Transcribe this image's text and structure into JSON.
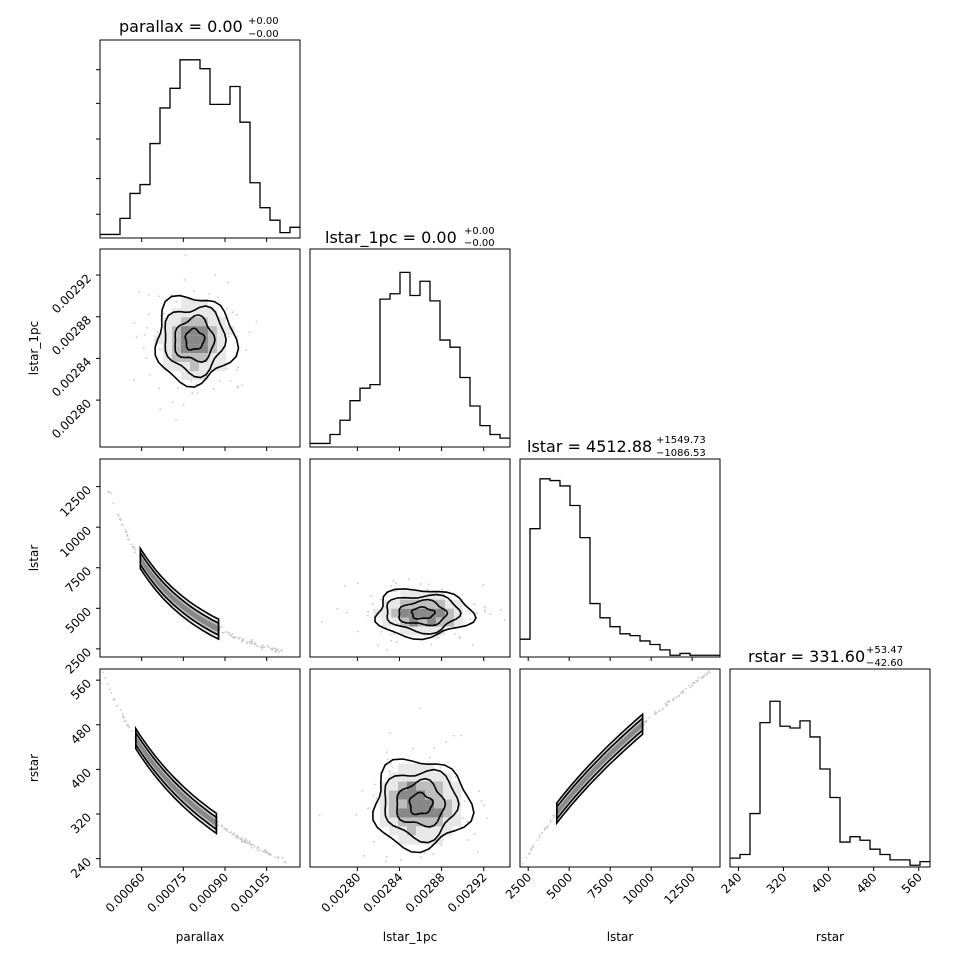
{
  "figure": {
    "params": [
      "parallax",
      "lstar_1pc",
      "lstar",
      "rstar"
    ],
    "titles": [
      {
        "text": "parallax = 0.00",
        "sup": "+0.00",
        "sub": "−0.00"
      },
      {
        "text": "lstar_1pc = 0.00",
        "sup": "+0.00",
        "sub": "−0.00"
      },
      {
        "text": "lstar = 4512.88",
        "sup": "+1549.73",
        "sub": "−1086.53"
      },
      {
        "text": "rstar = 331.60",
        "sup": "+53.47",
        "sub": "−42.60"
      }
    ],
    "axis_labels": {
      "parallax": "parallax",
      "lstar_1pc": "lstar_1pc",
      "lstar": "lstar",
      "rstar": "rstar"
    },
    "ticks": {
      "parallax": [
        "0.00060",
        "0.00075",
        "0.00090",
        "0.00105"
      ],
      "lstar_1pc": [
        "0.00280",
        "0.00284",
        "0.00288",
        "0.00292"
      ],
      "lstar": [
        "2500",
        "5000",
        "7500",
        "10000",
        "12500"
      ],
      "rstar": [
        "240",
        "320",
        "400",
        "480",
        "560"
      ]
    }
  },
  "chart_data": {
    "type": "corner",
    "params": [
      "parallax",
      "lstar_1pc",
      "lstar",
      "rstar"
    ],
    "ranges": {
      "parallax": [
        0.00045,
        0.00117
      ],
      "lstar_1pc": [
        0.002755,
        0.002945
      ],
      "lstar": [
        2000,
        14200
      ],
      "rstar": [
        225,
        580
      ]
    },
    "histograms": {
      "parallax": [
        2,
        2,
        11,
        25,
        30,
        53,
        73,
        84,
        100,
        100,
        95,
        75,
        75,
        85,
        65,
        31,
        17,
        10,
        3,
        6
      ],
      "lstar_1pc": [
        2,
        2,
        7,
        15,
        26,
        33,
        35,
        83,
        86,
        98,
        85,
        93,
        82,
        60,
        56,
        39,
        23,
        12,
        7,
        5
      ],
      "lstar": [
        10,
        72,
        100,
        99,
        96,
        85,
        67,
        30,
        22,
        17,
        13,
        12,
        9,
        7,
        4,
        1,
        2,
        1,
        1,
        1
      ],
      "rstar": [
        5,
        7,
        30,
        81,
        93,
        79,
        78,
        82,
        73,
        55,
        39,
        14,
        17,
        15,
        10,
        7,
        4,
        4,
        1,
        3
      ]
    },
    "quantiles": {
      "parallax": {
        "median": "0.00",
        "plus": "+0.00",
        "minus": "−0.00"
      },
      "lstar_1pc": {
        "median": "0.00",
        "plus": "+0.00",
        "minus": "−0.00"
      },
      "lstar": {
        "median": 4512.88,
        "plus": 1549.73,
        "minus": 1086.53
      },
      "rstar": {
        "median": 331.6,
        "plus": 53.47,
        "minus": 42.6
      }
    },
    "scatter": [
      {
        "x": "parallax",
        "y": "lstar_1pc",
        "kind": "blob",
        "cx": 0.00079,
        "cy": 0.002858,
        "sx": 8e-05,
        "sy": 2.5e-05
      },
      {
        "x": "parallax",
        "y": "lstar",
        "kind": "curve",
        "relation": "lstar = lstar_1pc / parallax^2"
      },
      {
        "x": "lstar_1pc",
        "y": "lstar",
        "kind": "blob",
        "cx": 0.002858,
        "cy": 4800,
        "sx": 2.5e-05,
        "sy": 900
      },
      {
        "x": "parallax",
        "y": "rstar",
        "kind": "curve",
        "relation": "rstar ∝ 1/parallax"
      },
      {
        "x": "lstar_1pc",
        "y": "rstar",
        "kind": "blob",
        "cx": 0.002858,
        "cy": 340,
        "sx": 2.5e-05,
        "sy": 45
      },
      {
        "x": "lstar",
        "y": "rstar",
        "kind": "curve",
        "relation": "rstar ∝ sqrt(lstar)"
      }
    ]
  }
}
